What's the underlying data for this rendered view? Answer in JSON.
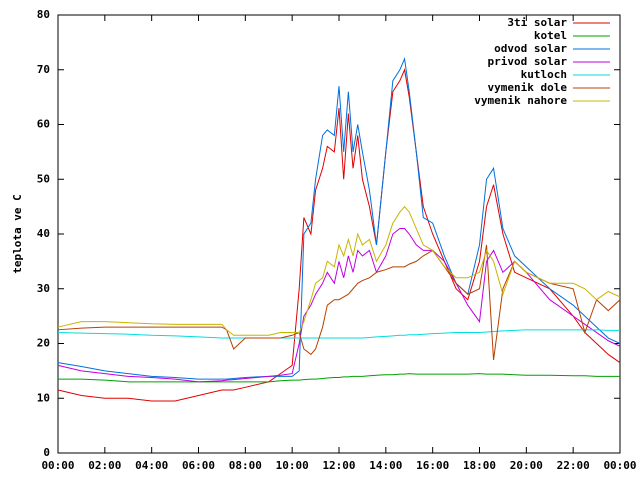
{
  "chart_data": {
    "type": "line",
    "y_label": "teplota ve C",
    "x": [
      0,
      1,
      2,
      3,
      4,
      5,
      6,
      7,
      7.2,
      7.5,
      8,
      9,
      9.5,
      10,
      10.3,
      10.5,
      10.8,
      11,
      11.3,
      11.5,
      11.8,
      12,
      12.2,
      12.4,
      12.6,
      12.8,
      13,
      13.3,
      13.6,
      14,
      14.3,
      14.6,
      14.8,
      15,
      15.3,
      15.6,
      16,
      16.5,
      17,
      17.5,
      18,
      18.3,
      18.6,
      19,
      19.5,
      20,
      21,
      22,
      22.5,
      23,
      23.5,
      24
    ],
    "series": [
      {
        "name": "3ti solar",
        "color": "#e00000",
        "values": [
          11.5,
          10.5,
          10,
          10,
          9.5,
          9.5,
          10.5,
          11.5,
          11.5,
          11.5,
          12,
          13,
          14.5,
          16,
          30,
          43,
          40,
          48,
          52,
          56,
          55,
          63,
          50,
          62,
          52,
          58,
          50,
          45,
          38,
          55,
          66,
          68,
          70,
          65,
          55,
          45,
          40,
          35,
          30,
          28,
          35,
          45,
          49,
          40,
          33,
          32,
          30,
          25,
          22,
          20,
          18,
          16.5
        ]
      },
      {
        "name": "kotel",
        "color": "#00a000",
        "values": [
          13.5,
          13.5,
          13.3,
          13,
          13,
          13,
          13,
          13,
          13,
          13,
          13,
          13,
          13.2,
          13.3,
          13.3,
          13.4,
          13.5,
          13.5,
          13.6,
          13.7,
          13.8,
          13.8,
          13.9,
          13.9,
          14,
          14,
          14,
          14.1,
          14.2,
          14.3,
          14.3,
          14.4,
          14.4,
          14.5,
          14.4,
          14.4,
          14.4,
          14.4,
          14.4,
          14.4,
          14.5,
          14.4,
          14.4,
          14.4,
          14.3,
          14.2,
          14.2,
          14.1,
          14.1,
          14,
          14,
          14
        ]
      },
      {
        "name": "odvod solar",
        "color": "#0070dd",
        "values": [
          16.5,
          15.8,
          15,
          14.5,
          14,
          13.8,
          13.5,
          13.5,
          13.5,
          13.6,
          13.8,
          14,
          14,
          14,
          15,
          40,
          42,
          50,
          58,
          59,
          58,
          67,
          55,
          66,
          55,
          60,
          55,
          48,
          38,
          55,
          68,
          70,
          72,
          66,
          55,
          43,
          42,
          36,
          31,
          29,
          38,
          50,
          52,
          41,
          36,
          34,
          30,
          27,
          25,
          23,
          21,
          20
        ]
      },
      {
        "name": "privod solar",
        "color": "#c000e0",
        "values": [
          16,
          15,
          14.5,
          14,
          13.8,
          13.5,
          13,
          13.2,
          13.3,
          13.4,
          13.6,
          14,
          14.2,
          14.5,
          20,
          25,
          27,
          29,
          31,
          33,
          31,
          35,
          32,
          36,
          33,
          37,
          36,
          37,
          33,
          36,
          40,
          41,
          41,
          40,
          38,
          37,
          37,
          35,
          31,
          27,
          24,
          35,
          37,
          33,
          35,
          33,
          28,
          25,
          23.5,
          22,
          20.5,
          19.5
        ]
      },
      {
        "name": "kutloch",
        "color": "#00dddd",
        "values": [
          22,
          21.9,
          21.8,
          21.7,
          21.5,
          21.4,
          21.2,
          21,
          21,
          21,
          21,
          21,
          21,
          21,
          21,
          21,
          21,
          21,
          21,
          21,
          21,
          21,
          21,
          21,
          21,
          21,
          21,
          21.1,
          21.2,
          21.3,
          21.4,
          21.5,
          21.5,
          21.6,
          21.6,
          21.7,
          21.8,
          21.9,
          22,
          22,
          22,
          22.1,
          22.2,
          22.3,
          22.4,
          22.5,
          22.5,
          22.5,
          22.5,
          22.5,
          22.4,
          22.4
        ]
      },
      {
        "name": "vymenik dole",
        "color": "#b84000",
        "values": [
          22.5,
          22.8,
          23,
          23,
          23,
          23,
          23,
          23,
          22.5,
          19,
          21,
          21,
          21,
          21.5,
          22,
          19,
          18,
          19,
          23,
          27,
          28,
          28,
          28.5,
          29,
          30,
          31,
          31.5,
          32,
          33,
          33.5,
          34,
          34,
          34,
          34.5,
          35,
          36,
          37,
          34,
          31,
          29,
          30,
          38,
          17,
          30,
          35,
          33,
          31,
          30,
          22,
          28,
          26,
          28
        ]
      },
      {
        "name": "vymenik nahore",
        "color": "#c8b400",
        "values": [
          23,
          24,
          24,
          23.8,
          23.6,
          23.5,
          23.5,
          23.5,
          22.5,
          21.5,
          21.5,
          21.5,
          22,
          22,
          22,
          24,
          28,
          31,
          32,
          35,
          34,
          38,
          36,
          39,
          36,
          40,
          38,
          39,
          35,
          38,
          42,
          44,
          45,
          44,
          41,
          38,
          37,
          34,
          32,
          32,
          33,
          37,
          35,
          29,
          35,
          33,
          31,
          31,
          30,
          28,
          29.5,
          28.5
        ]
      }
    ],
    "xlim": [
      0,
      24
    ],
    "xticks": [
      {
        "value": 0,
        "label": "00:00"
      },
      {
        "value": 2,
        "label": "02:00"
      },
      {
        "value": 4,
        "label": "04:00"
      },
      {
        "value": 6,
        "label": "06:00"
      },
      {
        "value": 8,
        "label": "08:00"
      },
      {
        "value": 10,
        "label": "10:00"
      },
      {
        "value": 12,
        "label": "12:00"
      },
      {
        "value": 14,
        "label": "14:00"
      },
      {
        "value": 16,
        "label": "16:00"
      },
      {
        "value": 18,
        "label": "18:00"
      },
      {
        "value": 20,
        "label": "20:00"
      },
      {
        "value": 22,
        "label": "22:00"
      },
      {
        "value": 24,
        "label": "00:00"
      }
    ],
    "ylim": [
      0,
      80
    ],
    "yticks": [
      0,
      10,
      20,
      30,
      40,
      50,
      60,
      70,
      80
    ],
    "grid": false,
    "legend": "top-right"
  }
}
